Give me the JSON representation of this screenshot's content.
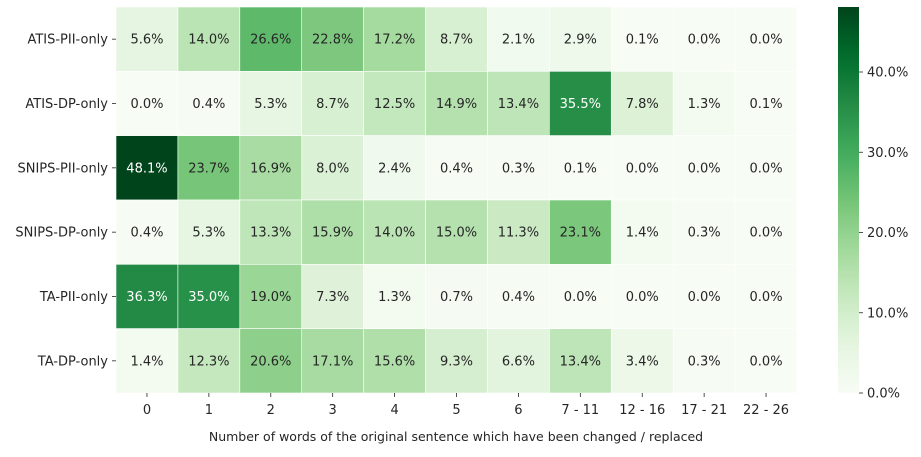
{
  "chart_data": {
    "type": "heatmap",
    "title": "",
    "xlabel": "Number of words of the original sentence which have been changed / replaced",
    "ylabel": "",
    "x_categories": [
      "0",
      "1",
      "2",
      "3",
      "4",
      "5",
      "6",
      "7 - 11",
      "12 - 16",
      "17 - 21",
      "22 - 26"
    ],
    "y_categories": [
      "ATIS-PII-only",
      "ATIS-DP-only",
      "SNIPS-PII-only",
      "SNIPS-DP-only",
      "TA-PII-only",
      "TA-DP-only"
    ],
    "values": [
      [
        5.6,
        14.0,
        26.6,
        22.8,
        17.2,
        8.7,
        2.1,
        2.9,
        0.1,
        0.0,
        0.0
      ],
      [
        0.0,
        0.4,
        5.3,
        8.7,
        12.5,
        14.9,
        13.4,
        35.5,
        7.8,
        1.3,
        0.1
      ],
      [
        48.1,
        23.7,
        16.9,
        8.0,
        2.4,
        0.4,
        0.3,
        0.1,
        0.0,
        0.0,
        0.0
      ],
      [
        0.4,
        5.3,
        13.3,
        15.9,
        14.0,
        15.0,
        11.3,
        23.1,
        1.4,
        0.3,
        0.0
      ],
      [
        36.3,
        35.0,
        19.0,
        7.3,
        1.3,
        0.7,
        0.4,
        0.0,
        0.0,
        0.0,
        0.0
      ],
      [
        1.4,
        12.3,
        20.6,
        17.1,
        15.6,
        9.3,
        6.6,
        13.4,
        3.4,
        0.3,
        0.0
      ]
    ],
    "value_format": "percent_1dp",
    "colormap": "Greens",
    "color_range": [
      0,
      48.1
    ],
    "colorbar_ticks": [
      "0.0%",
      "10.0%",
      "20.0%",
      "30.0%",
      "40.0%"
    ],
    "colorbar_tick_values": [
      0,
      10,
      20,
      30,
      40
    ],
    "grid": false,
    "legend": "colorbar-right"
  }
}
